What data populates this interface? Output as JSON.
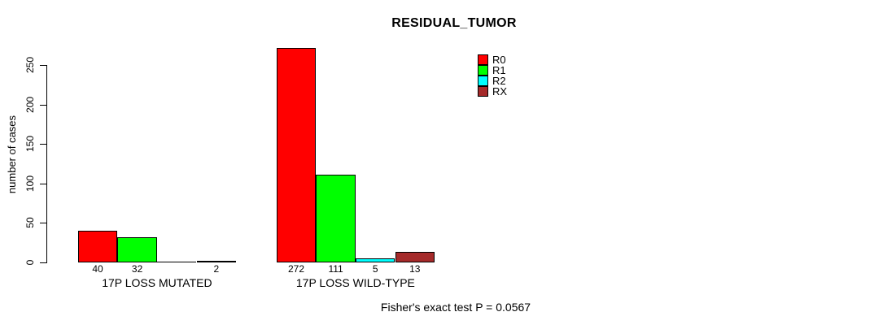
{
  "chart_data": {
    "type": "bar",
    "title": "RESIDUAL_TUMOR",
    "ylabel": "number of cases",
    "xlabel": "",
    "categories": [
      "17P LOSS MUTATED",
      "17P LOSS WILD-TYPE"
    ],
    "series": [
      {
        "name": "R0",
        "color": "#ff0000",
        "values": [
          40,
          272
        ]
      },
      {
        "name": "R1",
        "color": "#00ff00",
        "values": [
          32,
          111
        ]
      },
      {
        "name": "R2",
        "color": "#00ffff",
        "values": [
          0,
          5
        ]
      },
      {
        "name": "RX",
        "color": "#a52a2a",
        "values": [
          2,
          13
        ]
      }
    ],
    "bar_value_labels": [
      [
        "40",
        "32",
        "",
        "2"
      ],
      [
        "272",
        "111",
        "5",
        "13"
      ]
    ],
    "ylim": [
      0,
      250
    ],
    "yticks": [
      0,
      50,
      100,
      150,
      200,
      250
    ],
    "grid": false,
    "legend_position": "top-right",
    "legend_items": [
      "R0",
      "R1",
      "R2",
      "RX"
    ],
    "annotation": "Fisher's exact test P = 0.0567"
  }
}
